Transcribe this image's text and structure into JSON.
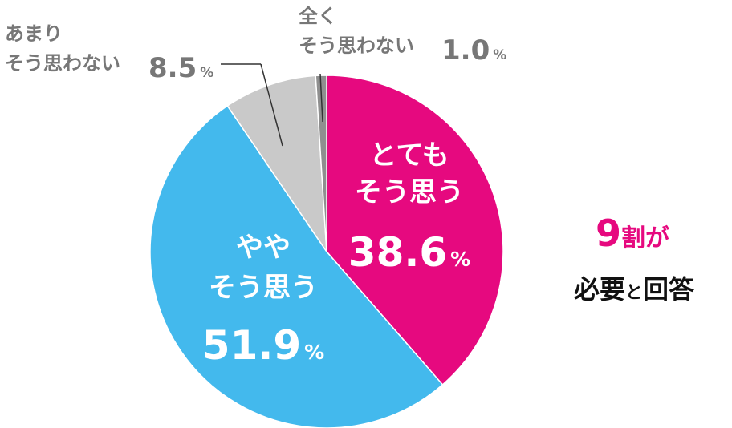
{
  "chart_data": {
    "type": "pie",
    "categories": [
      "とても\nそう思う",
      "やや\nそう思う",
      "あまり\nそう思わない",
      "全く\nそう思わない"
    ],
    "values": [
      38.6,
      51.9,
      8.5,
      1.0
    ],
    "value_labels": [
      "38.6",
      "51.9",
      "8.5",
      "1.0"
    ],
    "unit": "%",
    "colors": [
      "#e6097f",
      "#43b9ed",
      "#c9c9c9",
      "#8f8f8f"
    ],
    "annotation": [
      "9",
      "割が",
      "必要",
      "と",
      "回答"
    ]
  }
}
